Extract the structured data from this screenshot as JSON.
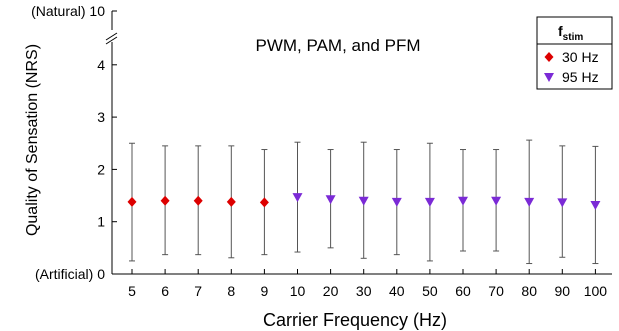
{
  "chart_data": {
    "type": "scatter",
    "title": "PWM, PAM, and PFM",
    "xlabel": "Carrier Frequency (Hz)",
    "ylabel": "Quality of Sensation (NRS)",
    "categories": [
      "5",
      "6",
      "7",
      "8",
      "9",
      "10",
      "20",
      "30",
      "40",
      "50",
      "60",
      "70",
      "80",
      "90",
      "100"
    ],
    "y_ticks": [
      "(Artificial) 0",
      "1",
      "2",
      "3",
      "4",
      "10"
    ],
    "y_tick_values": [
      0,
      1,
      2,
      3,
      4,
      10
    ],
    "y_top_label": "(Natural) 10",
    "ylim": [
      0,
      4.5
    ],
    "y_axis_break": true,
    "grid": false,
    "legend": {
      "title_main": "f",
      "title_sub": "stim",
      "placement": "top-right"
    },
    "series": [
      {
        "name": "30 Hz",
        "marker": "diamond",
        "color": "#dd0000",
        "category_indices": [
          0,
          1,
          2,
          3,
          4
        ],
        "values": [
          1.38,
          1.4,
          1.4,
          1.38,
          1.37
        ],
        "err_low": [
          0.25,
          0.37,
          0.37,
          0.31,
          0.37
        ],
        "err_high": [
          2.5,
          2.45,
          2.45,
          2.45,
          2.38
        ]
      },
      {
        "name": "95 Hz",
        "marker": "triangle-down",
        "color": "#7b2ad6",
        "category_indices": [
          5,
          6,
          7,
          8,
          9,
          10,
          11,
          12,
          13,
          14
        ],
        "values": [
          1.47,
          1.43,
          1.4,
          1.38,
          1.38,
          1.4,
          1.4,
          1.38,
          1.37,
          1.32
        ],
        "err_low": [
          0.42,
          0.5,
          0.3,
          0.37,
          0.25,
          0.44,
          0.44,
          0.2,
          0.32,
          0.2
        ],
        "err_high": [
          2.52,
          2.38,
          2.52,
          2.38,
          2.5,
          2.38,
          2.38,
          2.56,
          2.45,
          2.44
        ]
      }
    ]
  }
}
